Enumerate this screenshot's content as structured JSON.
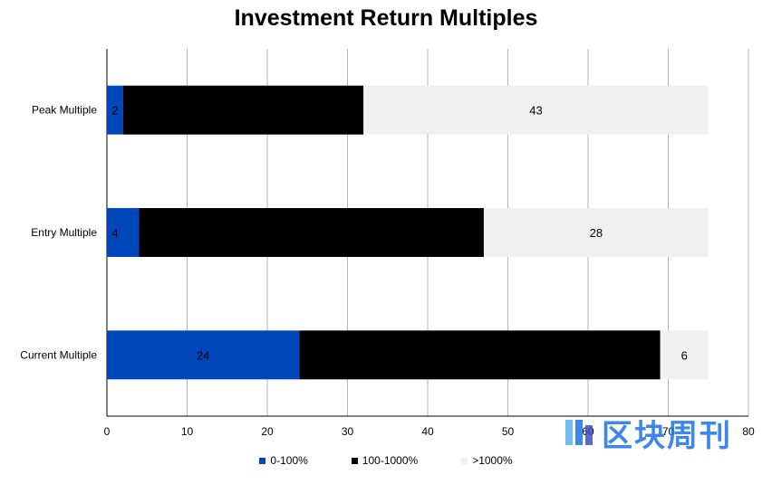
{
  "chart_data": {
    "type": "bar",
    "orientation": "horizontal",
    "stacked": true,
    "title": "Investment Return Multiples",
    "categories": [
      "Peak Multiple",
      "Entry Multiple",
      "Current Multiple"
    ],
    "series": [
      {
        "name": "0-100%",
        "color": "#0047bb",
        "values": [
          2,
          4,
          24
        ]
      },
      {
        "name": "100-1000%",
        "color": "#000000",
        "values": [
          30,
          43,
          45
        ]
      },
      {
        "name": ">1000%",
        "color": "#f0f0f0",
        "values": [
          43,
          28,
          6
        ]
      }
    ],
    "data_labels": [
      [
        "2",
        "",
        "43"
      ],
      [
        "4",
        "",
        "28"
      ],
      [
        "24",
        "",
        "6"
      ]
    ],
    "x_ticks": [
      "0",
      "10",
      "20",
      "30",
      "40",
      "50",
      "60",
      "70",
      "80"
    ],
    "xlim": [
      0,
      80
    ],
    "grid": "vertical",
    "legend_position": "bottom"
  },
  "watermark": {
    "text": "区块周刊"
  }
}
